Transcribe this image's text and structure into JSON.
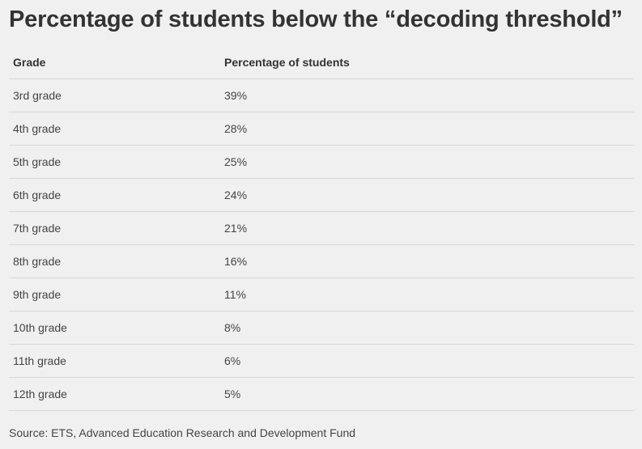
{
  "header": {
    "title": "Percentage of students below the “decoding threshold”"
  },
  "table": {
    "columns": [
      "Grade",
      "Percentage of students"
    ],
    "rows": [
      [
        "3rd grade",
        "39%"
      ],
      [
        "4th grade",
        "28%"
      ],
      [
        "5th grade",
        "25%"
      ],
      [
        "6th grade",
        "24%"
      ],
      [
        "7th grade",
        "21%"
      ],
      [
        "8th grade",
        "16%"
      ],
      [
        "9th grade",
        "11%"
      ],
      [
        "10th grade",
        "8%"
      ],
      [
        "11th grade",
        "6%"
      ],
      [
        "12th grade",
        "5%"
      ]
    ]
  },
  "footer": {
    "source": "Source: ETS, Advanced Education Research and Development Fund"
  }
}
